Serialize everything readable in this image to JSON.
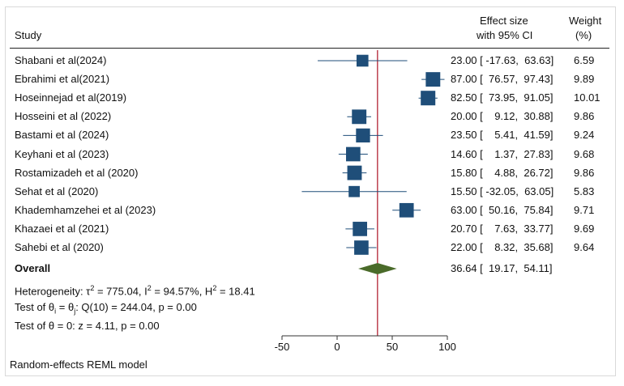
{
  "headers": {
    "study": "Study",
    "effect_line1": "Effect size",
    "effect_line2": "with 95% CI",
    "weight_line1": "Weight",
    "weight_line2": "(%)"
  },
  "chart_data": {
    "type": "forest",
    "x_range": [
      -50,
      100
    ],
    "x_ticks": [
      "-50",
      "0",
      "50",
      "100"
    ],
    "reference_line": 36.64,
    "colors": {
      "marker": "#1f4e79",
      "ci_line": "#1f4e79",
      "overall": "#4a6b2a",
      "reference": "#b22234",
      "axis": "#333333"
    },
    "studies": [
      {
        "name": "Shabani et al(2024)",
        "es": 23.0,
        "lo": -17.63,
        "hi": 63.63,
        "ci_text": "23.00 [ -17.63,  63.63]",
        "weight": "6.59"
      },
      {
        "name": "Ebrahimi et al(2021)",
        "es": 87.0,
        "lo": 76.57,
        "hi": 97.43,
        "ci_text": "87.00 [  76.57,  97.43]",
        "weight": "9.89"
      },
      {
        "name": "Hoseinnejad et al(2019)",
        "es": 82.5,
        "lo": 73.95,
        "hi": 91.05,
        "ci_text": "82.50 [  73.95,  91.05]",
        "weight": "10.01"
      },
      {
        "name": "Hosseini et al (2022)",
        "es": 20.0,
        "lo": 9.12,
        "hi": 30.88,
        "ci_text": "20.00 [    9.12,  30.88]",
        "weight": "9.86"
      },
      {
        "name": "Bastami et al (2024)",
        "es": 23.5,
        "lo": 5.41,
        "hi": 41.59,
        "ci_text": "23.50 [    5.41,  41.59]",
        "weight": "9.24"
      },
      {
        "name": "Keyhani et al (2023)",
        "es": 14.6,
        "lo": 1.37,
        "hi": 27.83,
        "ci_text": "14.60 [    1.37,  27.83]",
        "weight": "9.68"
      },
      {
        "name": "Rostamizadeh et al (2020)",
        "es": 15.8,
        "lo": 4.88,
        "hi": 26.72,
        "ci_text": "15.80 [    4.88,  26.72]",
        "weight": "9.86"
      },
      {
        "name": "Sehat et al (2020)",
        "es": 15.5,
        "lo": -32.05,
        "hi": 63.05,
        "ci_text": "15.50 [ -32.05,  63.05]",
        "weight": "5.83"
      },
      {
        "name": "Khademhamzehei et al (2023)",
        "es": 63.0,
        "lo": 50.16,
        "hi": 75.84,
        "ci_text": "63.00 [  50.16,  75.84]",
        "weight": "9.71"
      },
      {
        "name": "Khazaei et al (2021)",
        "es": 20.7,
        "lo": 7.63,
        "hi": 33.77,
        "ci_text": "20.70 [    7.63,  33.77]",
        "weight": "9.69"
      },
      {
        "name": "Sahebi et al (2020)",
        "es": 22.0,
        "lo": 8.32,
        "hi": 35.68,
        "ci_text": "22.00 [    8.32,  35.68]",
        "weight": "9.64"
      }
    ],
    "overall": {
      "label": "Overall",
      "es": 36.64,
      "lo": 19.17,
      "hi": 54.11,
      "ci_text": "36.64 [  19.17,  54.11]"
    },
    "notes": {
      "heterogeneity_prefix": "Heterogeneity: ",
      "tau2": "775.04",
      "i2": "94.57%",
      "h2": "18.41",
      "q_test": "Q(10) = 244.04, p = 0.00",
      "theta_test": "z = 4.11, p = 0.00"
    },
    "model": "Random-effects REML model"
  }
}
